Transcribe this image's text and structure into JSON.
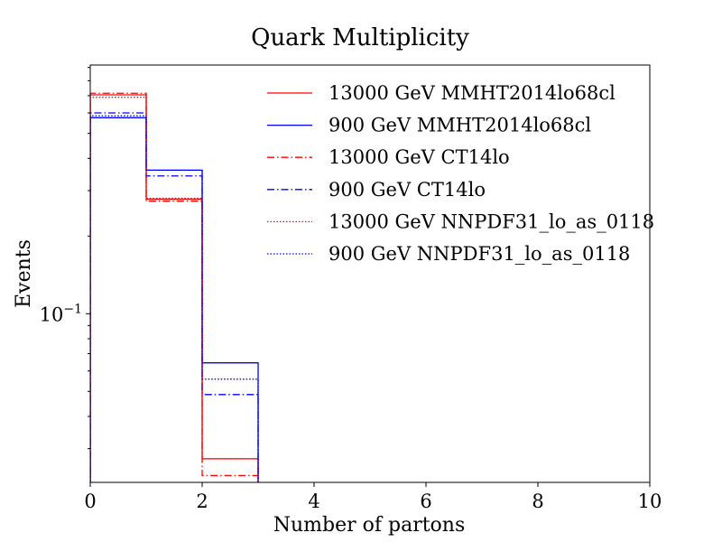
{
  "chart_data": {
    "type": "step",
    "title": "Quark Multiplicity",
    "xlabel": "Number of partons",
    "ylabel": "Events",
    "xlim": [
      0,
      10
    ],
    "ylim": [
      0.0222,
      0.92
    ],
    "yscale": "log",
    "grid": false,
    "legend_position": "top-right",
    "x_ticks": [
      {
        "value": 0,
        "label": "0"
      },
      {
        "value": 2,
        "label": "2"
      },
      {
        "value": 4,
        "label": "4"
      },
      {
        "value": 6,
        "label": "6"
      },
      {
        "value": 8,
        "label": "8"
      },
      {
        "value": 10,
        "label": "10"
      }
    ],
    "y_major_ticks": [
      {
        "value": 0.1,
        "base": "10",
        "exponent": "−1"
      }
    ],
    "y_minor_ticks": [
      0.03,
      0.04,
      0.05,
      0.06,
      0.07,
      0.08,
      0.09,
      0.2,
      0.3,
      0.4,
      0.5,
      0.6,
      0.7,
      0.8,
      0.9
    ],
    "bin_edges": [
      0,
      1,
      2,
      3
    ],
    "series": [
      {
        "name": "13000 GeV MMHT2014lo68cl",
        "color": "#ff0000",
        "linestyle": "solid",
        "values": [
          0.705,
          0.278,
          0.0274
        ]
      },
      {
        "name": "900 GeV MMHT2014lo68cl",
        "color": "#0000ff",
        "linestyle": "solid",
        "values": [
          0.575,
          0.36,
          0.0645
        ]
      },
      {
        "name": "13000 GeV CT14lo",
        "color": "#ff0000",
        "linestyle": "dashdot",
        "values": [
          0.715,
          0.273,
          0.0236
        ]
      },
      {
        "name": "900 GeV CT14lo",
        "color": "#0000ff",
        "linestyle": "dashdot",
        "values": [
          0.6,
          0.342,
          0.0486
        ]
      },
      {
        "name": "13000 GeV NNPDF31_lo_as_0118",
        "color": "#ff0000",
        "linestyle": "dotted",
        "values": [
          0.69,
          0.28,
          0.0274
        ]
      },
      {
        "name": "900 GeV NNPDF31_lo_as_0118",
        "color": "#0000ff",
        "linestyle": "dotted",
        "values": [
          0.585,
          0.36,
          0.0558
        ]
      }
    ]
  }
}
